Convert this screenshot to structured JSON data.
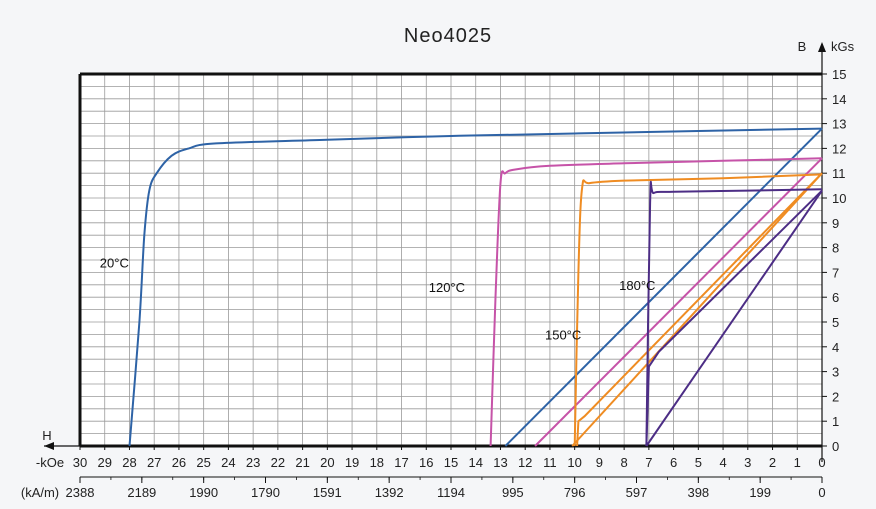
{
  "chart_data": {
    "type": "line",
    "title": "Neo4025",
    "y_axis": {
      "name": "B",
      "unit": "kGs",
      "min": 0,
      "max": 15,
      "ticks": [
        0,
        1,
        2,
        3,
        4,
        5,
        6,
        7,
        8,
        9,
        10,
        11,
        12,
        13,
        14,
        15
      ]
    },
    "x_axis": {
      "name": "H",
      "unit_koe": "-kOe",
      "unit_kam": "(kA/m)",
      "min": 0,
      "max": 30,
      "ticks_koe": [
        30,
        29,
        28,
        27,
        26,
        25,
        24,
        23,
        22,
        21,
        20,
        19,
        18,
        17,
        16,
        15,
        14,
        13,
        12,
        11,
        10,
        9,
        8,
        7,
        6,
        5,
        4,
        3,
        2,
        1,
        0
      ],
      "ticks_kam": [
        {
          "koe": 30,
          "label": "2388"
        },
        {
          "koe": 27.5,
          "label": "2189"
        },
        {
          "koe": 25,
          "label": "1990"
        },
        {
          "koe": 22.5,
          "label": "1790"
        },
        {
          "koe": 20,
          "label": "1591"
        },
        {
          "koe": 17.5,
          "label": "1392"
        },
        {
          "koe": 15,
          "label": "1194"
        },
        {
          "koe": 12.5,
          "label": "995"
        },
        {
          "koe": 10,
          "label": "796"
        },
        {
          "koe": 7.5,
          "label": "597"
        },
        {
          "koe": 5,
          "label": "398"
        },
        {
          "koe": 2.5,
          "label": "199"
        },
        {
          "koe": 0,
          "label": "0"
        }
      ]
    },
    "series": [
      {
        "name": "20°C",
        "color": "#2e63a6",
        "label_at": [
          29.2,
          7.2
        ],
        "demag": [
          [
            28.0,
            0
          ],
          [
            27.6,
            5
          ],
          [
            27.4,
            8.5
          ],
          [
            27.2,
            10.3
          ],
          [
            26.9,
            11.0
          ],
          [
            26.3,
            11.7
          ],
          [
            25.6,
            12.0
          ],
          [
            24.5,
            12.2
          ],
          [
            20,
            12.35
          ],
          [
            15,
            12.5
          ],
          [
            10,
            12.6
          ],
          [
            5,
            12.7
          ],
          [
            0,
            12.8
          ]
        ],
        "load_line": [
          [
            12.8,
            0
          ],
          [
            0,
            12.8
          ]
        ]
      },
      {
        "name": "120°C",
        "color": "#c653a8",
        "label_at": [
          15.9,
          6.2
        ],
        "demag": [
          [
            13.4,
            0
          ],
          [
            13.2,
            6
          ],
          [
            13.0,
            10.6
          ],
          [
            12.8,
            11.0
          ],
          [
            12.4,
            11.15
          ],
          [
            11,
            11.3
          ],
          [
            8,
            11.4
          ],
          [
            4,
            11.5
          ],
          [
            0,
            11.6
          ]
        ],
        "load_line": [
          [
            11.6,
            0
          ],
          [
            0,
            11.6
          ]
        ]
      },
      {
        "name": "150°C",
        "color": "#ef8c22",
        "label_at": [
          11.2,
          4.3
        ],
        "demag": [
          [
            9.9,
            0
          ],
          [
            9.85,
            1
          ],
          [
            9.6,
            1.2
          ],
          [
            0,
            11.0
          ]
        ],
        "demag_upper": [
          [
            10.0,
            0
          ],
          [
            9.85,
            7
          ],
          [
            9.7,
            10.4
          ],
          [
            9.4,
            10.6
          ],
          [
            8,
            10.7
          ],
          [
            4,
            10.8
          ],
          [
            0,
            10.95
          ]
        ],
        "load_line": [
          [
            10.1,
            0
          ],
          [
            0,
            11.0
          ]
        ]
      },
      {
        "name": "180°C",
        "color": "#4c2d85",
        "label_at": [
          8.2,
          6.3
        ],
        "demag": [
          [
            7.1,
            0
          ],
          [
            7.0,
            3.2
          ],
          [
            6.6,
            3.8
          ],
          [
            0,
            10.3
          ]
        ],
        "demag_upper": [
          [
            7.1,
            0
          ],
          [
            6.95,
            9.8
          ],
          [
            6.8,
            10.2
          ],
          [
            6,
            10.25
          ],
          [
            3,
            10.3
          ],
          [
            0,
            10.35
          ]
        ],
        "load_line": [
          [
            7.1,
            0
          ],
          [
            0,
            10.3
          ]
        ]
      }
    ],
    "grid": true
  }
}
